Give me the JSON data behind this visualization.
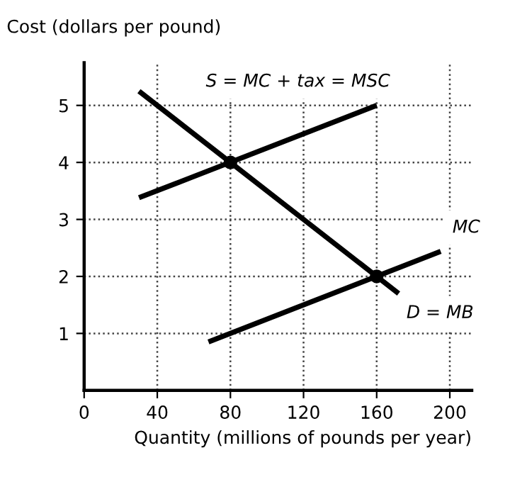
{
  "chart_data": {
    "type": "line",
    "ylabel": "Cost (dollars per pound)",
    "xlabel": "Quantity (millions of pounds per year)",
    "series": [
      {
        "name": "D = MB",
        "color": "#000000",
        "x": [
          30,
          172
        ],
        "values": [
          5.25,
          1.7
        ]
      },
      {
        "name": "S = MC + tax = MSC",
        "color": "#000000",
        "x": [
          30,
          160
        ],
        "values": [
          3.38,
          5
        ]
      },
      {
        "name": "MC",
        "color": "#000000",
        "x": [
          68,
          195
        ],
        "values": [
          0.85,
          2.44
        ]
      },
      {
        "type": "scatter",
        "marker": "circle",
        "color": "#000000",
        "x": [
          80,
          160
        ],
        "values": [
          4,
          2
        ]
      }
    ],
    "xlim": [
      0,
      212
    ],
    "ylim": [
      0,
      5.75
    ],
    "xticks": [
      {
        "value": 0,
        "label": "0"
      },
      40,
      80,
      120,
      160,
      200
    ],
    "yticks": [
      1,
      2,
      3,
      4,
      5
    ],
    "grid": true,
    "line_style": "solid",
    "legend": false
  }
}
